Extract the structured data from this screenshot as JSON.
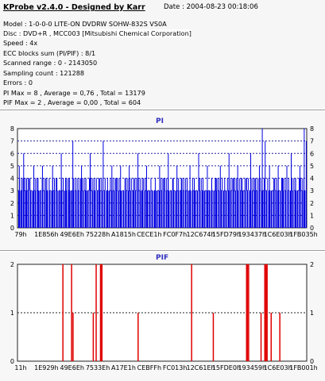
{
  "header": {
    "title": "KProbe v2.4.0 - Designed by Karr",
    "date": "Date : 2004-08-23 00:18:06"
  },
  "info": [
    "Model : 1-0-0-0 LITE-ON DVDRW SOHW-832S  VS0A",
    "Disc : DVD+R , MCC003 [Mitsubishi Chemical Corporation]",
    "Speed : 4x",
    "ECC blocks sum (PI/PIF) : 8/1",
    "Scanned range : 0 - 2143050",
    "Sampling count : 121288",
    "Errors : 0",
    "PI Max = 8 , Average = 0,76 , Total = 13179",
    "PIF Max = 2 , Average = 0,00 , Total = 604"
  ],
  "colors": {
    "pi_bar": "#0000e0",
    "pif_bar": "#e00000",
    "plot_bg": "#ffffff",
    "pi_dots": "#2020a0",
    "pif_dots": "#202020",
    "title": "#3030c0"
  },
  "chart_data": [
    {
      "type": "bar",
      "title": "PI",
      "ylim": [
        0,
        8
      ],
      "y_ticks": [
        "0",
        "1",
        "2",
        "3",
        "4",
        "5",
        "6",
        "7",
        "8"
      ],
      "x_ticks": [
        "79h",
        "1E856h",
        "49E6Eh",
        "75228h",
        "A1815h",
        "CECE1h",
        "FC0F7h",
        "12C674h",
        "15FD79h",
        "193437h",
        "1C6E03h",
        "1FB035h"
      ],
      "grid": true,
      "baseline": 3,
      "spikes": [
        {
          "x": 0.005,
          "v": 5
        },
        {
          "x": 0.012,
          "v": 4
        },
        {
          "x": 0.02,
          "v": 6
        },
        {
          "x": 0.03,
          "v": 4
        },
        {
          "x": 0.04,
          "v": 4
        },
        {
          "x": 0.055,
          "v": 5
        },
        {
          "x": 0.07,
          "v": 4
        },
        {
          "x": 0.085,
          "v": 5
        },
        {
          "x": 0.1,
          "v": 4
        },
        {
          "x": 0.12,
          "v": 5
        },
        {
          "x": 0.135,
          "v": 4
        },
        {
          "x": 0.15,
          "v": 6
        },
        {
          "x": 0.165,
          "v": 4
        },
        {
          "x": 0.178,
          "v": 4
        },
        {
          "x": 0.19,
          "v": 7
        },
        {
          "x": 0.205,
          "v": 4
        },
        {
          "x": 0.22,
          "v": 5
        },
        {
          "x": 0.235,
          "v": 4
        },
        {
          "x": 0.25,
          "v": 6
        },
        {
          "x": 0.265,
          "v": 4
        },
        {
          "x": 0.28,
          "v": 4
        },
        {
          "x": 0.295,
          "v": 7
        },
        {
          "x": 0.31,
          "v": 4
        },
        {
          "x": 0.325,
          "v": 5
        },
        {
          "x": 0.34,
          "v": 4
        },
        {
          "x": 0.355,
          "v": 5
        },
        {
          "x": 0.37,
          "v": 4
        },
        {
          "x": 0.385,
          "v": 5
        },
        {
          "x": 0.4,
          "v": 4
        },
        {
          "x": 0.415,
          "v": 6
        },
        {
          "x": 0.43,
          "v": 4
        },
        {
          "x": 0.445,
          "v": 5
        },
        {
          "x": 0.46,
          "v": 4
        },
        {
          "x": 0.475,
          "v": 4
        },
        {
          "x": 0.49,
          "v": 5
        },
        {
          "x": 0.505,
          "v": 4
        },
        {
          "x": 0.52,
          "v": 6
        },
        {
          "x": 0.535,
          "v": 4
        },
        {
          "x": 0.55,
          "v": 5
        },
        {
          "x": 0.565,
          "v": 4
        },
        {
          "x": 0.58,
          "v": 4
        },
        {
          "x": 0.595,
          "v": 5
        },
        {
          "x": 0.61,
          "v": 4
        },
        {
          "x": 0.625,
          "v": 6
        },
        {
          "x": 0.64,
          "v": 4
        },
        {
          "x": 0.655,
          "v": 5
        },
        {
          "x": 0.67,
          "v": 4
        },
        {
          "x": 0.685,
          "v": 4
        },
        {
          "x": 0.7,
          "v": 5
        },
        {
          "x": 0.715,
          "v": 4
        },
        {
          "x": 0.73,
          "v": 6
        },
        {
          "x": 0.745,
          "v": 4
        },
        {
          "x": 0.76,
          "v": 5
        },
        {
          "x": 0.775,
          "v": 4
        },
        {
          "x": 0.79,
          "v": 4
        },
        {
          "x": 0.805,
          "v": 6
        },
        {
          "x": 0.82,
          "v": 4
        },
        {
          "x": 0.835,
          "v": 5
        },
        {
          "x": 0.845,
          "v": 8
        },
        {
          "x": 0.855,
          "v": 7
        },
        {
          "x": 0.87,
          "v": 5
        },
        {
          "x": 0.885,
          "v": 4
        },
        {
          "x": 0.9,
          "v": 5
        },
        {
          "x": 0.915,
          "v": 4
        },
        {
          "x": 0.93,
          "v": 5
        },
        {
          "x": 0.945,
          "v": 6
        },
        {
          "x": 0.96,
          "v": 4
        },
        {
          "x": 0.975,
          "v": 5
        },
        {
          "x": 0.99,
          "v": 8
        },
        {
          "x": 0.997,
          "v": 7
        }
      ]
    },
    {
      "type": "bar",
      "title": "PIF",
      "ylim": [
        0,
        2
      ],
      "y_ticks": [
        "0",
        "1",
        "2"
      ],
      "x_ticks": [
        "11h",
        "1E929h",
        "49E6Eh",
        "7533Eh",
        "A17E1h",
        "CEBFFh",
        "FC013h",
        "12C61Eh",
        "15FDE0h",
        "193459h",
        "1C6E03h",
        "1FB001h"
      ],
      "grid": true,
      "spikes": [
        {
          "x": 0.155,
          "v": 2
        },
        {
          "x": 0.185,
          "v": 2
        },
        {
          "x": 0.19,
          "v": 1
        },
        {
          "x": 0.26,
          "v": 1
        },
        {
          "x": 0.27,
          "v": 2
        },
        {
          "x": 0.285,
          "v": 2
        },
        {
          "x": 0.288,
          "v": 2
        },
        {
          "x": 0.29,
          "v": 2
        },
        {
          "x": 0.415,
          "v": 1
        },
        {
          "x": 0.6,
          "v": 2
        },
        {
          "x": 0.675,
          "v": 1
        },
        {
          "x": 0.79,
          "v": 2
        },
        {
          "x": 0.793,
          "v": 2
        },
        {
          "x": 0.797,
          "v": 2
        },
        {
          "x": 0.84,
          "v": 1
        },
        {
          "x": 0.853,
          "v": 2
        },
        {
          "x": 0.855,
          "v": 2
        },
        {
          "x": 0.857,
          "v": 2
        },
        {
          "x": 0.859,
          "v": 2
        },
        {
          "x": 0.861,
          "v": 2
        },
        {
          "x": 0.875,
          "v": 1
        },
        {
          "x": 0.905,
          "v": 1
        }
      ]
    }
  ]
}
